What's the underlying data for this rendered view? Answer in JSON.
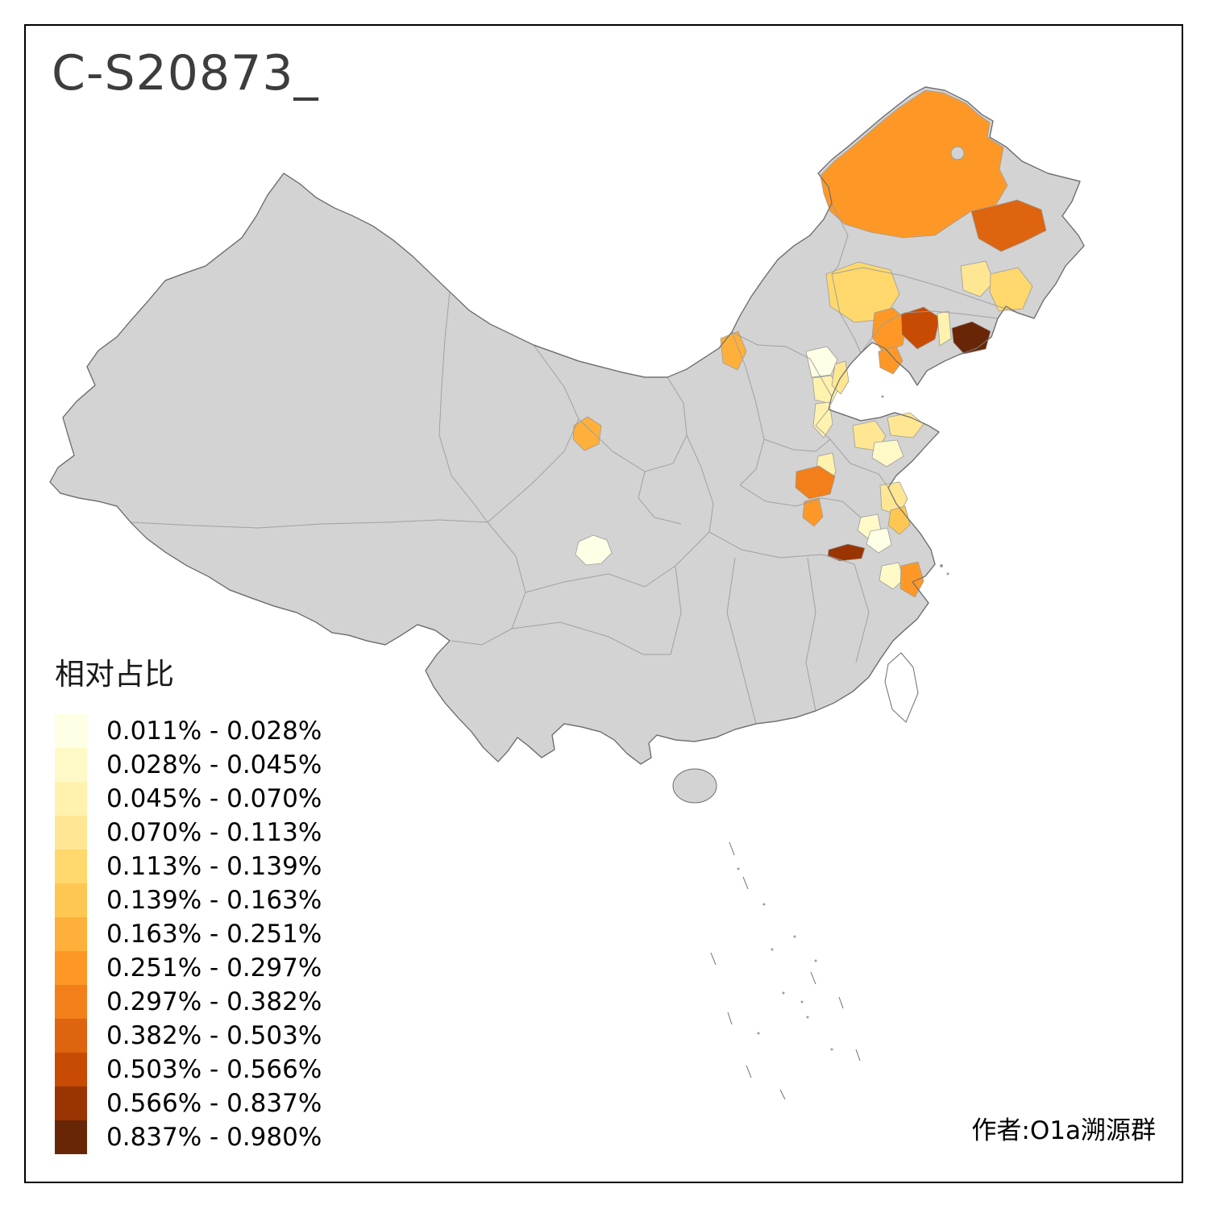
{
  "title": "C-S20873_",
  "attribution": "作者:O1a溯源群",
  "legend": {
    "title": "相对占比",
    "bins": [
      {
        "range": "0.011% - 0.028%",
        "color": "#FFFFE5"
      },
      {
        "range": "0.028% - 0.045%",
        "color": "#FFF9C8"
      },
      {
        "range": "0.045% - 0.070%",
        "color": "#FFF2AE"
      },
      {
        "range": "0.070% - 0.113%",
        "color": "#FEE693"
      },
      {
        "range": "0.113% - 0.139%",
        "color": "#FED86D"
      },
      {
        "range": "0.139% - 0.163%",
        "color": "#FEC751"
      },
      {
        "range": "0.163% - 0.251%",
        "color": "#FEB03A"
      },
      {
        "range": "0.251% - 0.297%",
        "color": "#FD9827"
      },
      {
        "range": "0.297% - 0.382%",
        "color": "#F27F19"
      },
      {
        "range": "0.382% - 0.503%",
        "color": "#DE640F"
      },
      {
        "range": "0.503% - 0.566%",
        "color": "#C74B02"
      },
      {
        "range": "0.566% - 0.837%",
        "color": "#9A3503"
      },
      {
        "range": "0.837% - 0.980%",
        "color": "#692606"
      }
    ]
  },
  "map": {
    "background": "#FFFFFF",
    "base_fill": "#D3D3D3",
    "outer_border_color": "#6E6E6E",
    "inner_border_color": "#9C9C9C",
    "taiwan_fill": "#FFFFFF"
  },
  "chart_data": {
    "type": "choropleth",
    "title": "C-S20873_",
    "legend_title": "相对占比",
    "unit": "%",
    "bin_ranges": [
      "0.011% - 0.028%",
      "0.028% - 0.045%",
      "0.045% - 0.070%",
      "0.070% - 0.113%",
      "0.113% - 0.139%",
      "0.139% - 0.163%",
      "0.163% - 0.251%",
      "0.251% - 0.297%",
      "0.297% - 0.382%",
      "0.382% - 0.503%",
      "0.503% - 0.566%",
      "0.566% - 0.837%",
      "0.837% - 0.980%"
    ],
    "regions": [
      {
        "id": "r01",
        "bin_index": 7,
        "value_range": "0.251% - 0.297%"
      },
      {
        "id": "r02",
        "bin_index": 9,
        "value_range": "0.382% - 0.503%"
      },
      {
        "id": "r03",
        "bin_index": 4,
        "value_range": "0.113% - 0.139%"
      },
      {
        "id": "r04",
        "bin_index": 7,
        "value_range": "0.251% - 0.297%"
      },
      {
        "id": "r05",
        "bin_index": 10,
        "value_range": "0.503% - 0.566%"
      },
      {
        "id": "r06",
        "bin_index": 2,
        "value_range": "0.045% - 0.070%"
      },
      {
        "id": "r07",
        "bin_index": 12,
        "value_range": "0.837% - 0.980%"
      },
      {
        "id": "r08",
        "bin_index": 7,
        "value_range": "0.251% - 0.297%"
      },
      {
        "id": "r09",
        "bin_index": 3,
        "value_range": "0.070% - 0.113%"
      },
      {
        "id": "r10",
        "bin_index": 4,
        "value_range": "0.113% - 0.139%"
      },
      {
        "id": "r11",
        "bin_index": 6,
        "value_range": "0.163% - 0.251%"
      },
      {
        "id": "r12",
        "bin_index": 0,
        "value_range": "0.011% - 0.028%"
      },
      {
        "id": "r13",
        "bin_index": 2,
        "value_range": "0.045% - 0.070%"
      },
      {
        "id": "r14",
        "bin_index": 3,
        "value_range": "0.070% - 0.113%"
      },
      {
        "id": "r15",
        "bin_index": 2,
        "value_range": "0.045% - 0.070%"
      },
      {
        "id": "r16",
        "bin_index": 6,
        "value_range": "0.163% - 0.251%"
      },
      {
        "id": "r17",
        "bin_index": 3,
        "value_range": "0.070% - 0.113%"
      },
      {
        "id": "r18",
        "bin_index": 3,
        "value_range": "0.070% - 0.113%"
      },
      {
        "id": "r19",
        "bin_index": 1,
        "value_range": "0.028% - 0.045%"
      },
      {
        "id": "r20",
        "bin_index": 2,
        "value_range": "0.045% - 0.070%"
      },
      {
        "id": "r21",
        "bin_index": 8,
        "value_range": "0.297% - 0.382%"
      },
      {
        "id": "r22",
        "bin_index": 7,
        "value_range": "0.251% - 0.297%"
      },
      {
        "id": "r23",
        "bin_index": 3,
        "value_range": "0.070% - 0.113%"
      },
      {
        "id": "r24",
        "bin_index": 5,
        "value_range": "0.139% - 0.163%"
      },
      {
        "id": "r25",
        "bin_index": 1,
        "value_range": "0.028% - 0.045%"
      },
      {
        "id": "r26",
        "bin_index": 0,
        "value_range": "0.011% - 0.028%"
      },
      {
        "id": "r27",
        "bin_index": 11,
        "value_range": "0.566% - 0.837%"
      },
      {
        "id": "r28",
        "bin_index": 1,
        "value_range": "0.028% - 0.045%"
      },
      {
        "id": "r29",
        "bin_index": 7,
        "value_range": "0.251% - 0.297%"
      },
      {
        "id": "r30",
        "bin_index": 0,
        "value_range": "0.011% - 0.028%"
      }
    ]
  }
}
